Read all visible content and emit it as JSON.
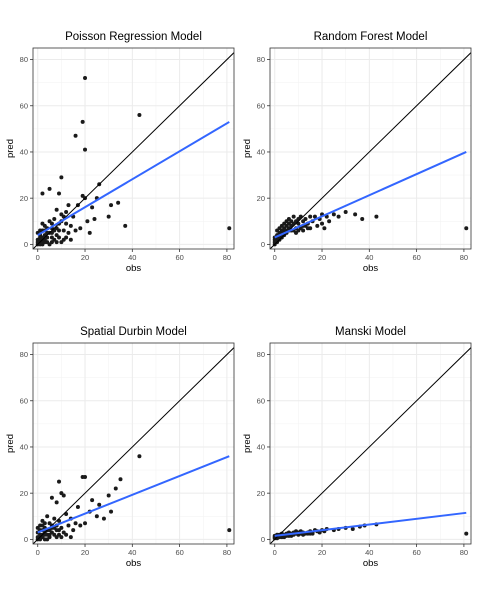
{
  "chart_data": [
    {
      "type": "scatter",
      "title": "Poisson Regression Model",
      "xlabel": "obs",
      "ylabel": "pred",
      "xlim": [
        -2,
        83
      ],
      "ylim": [
        -2,
        85
      ],
      "xticks": [
        0,
        20,
        40,
        60,
        80
      ],
      "yticks": [
        0,
        20,
        40,
        60,
        80
      ],
      "grid": true,
      "reference_line": "y = x",
      "fit_line": {
        "x": [
          0,
          81
        ],
        "y": [
          4,
          53
        ]
      },
      "colors": {
        "points": "#1a1a1a",
        "reference": "#000000",
        "fit": "#3366ff",
        "grid": "#ebebeb",
        "frame": "#333333"
      },
      "points": [
        [
          20,
          72
        ],
        [
          43,
          56
        ],
        [
          19,
          53
        ],
        [
          16,
          47
        ],
        [
          20,
          41
        ],
        [
          10,
          29
        ],
        [
          5,
          24
        ],
        [
          2,
          22
        ],
        [
          9,
          22
        ],
        [
          19,
          21
        ],
        [
          20,
          20
        ],
        [
          25,
          20
        ],
        [
          26,
          26
        ],
        [
          13,
          17
        ],
        [
          17,
          17
        ],
        [
          23,
          16
        ],
        [
          31,
          17
        ],
        [
          34,
          18
        ],
        [
          8,
          15
        ],
        [
          12,
          14
        ],
        [
          15,
          12
        ],
        [
          21,
          10
        ],
        [
          24,
          11
        ],
        [
          30,
          12
        ],
        [
          18,
          7
        ],
        [
          22,
          5
        ],
        [
          37,
          8
        ],
        [
          81,
          7
        ],
        [
          11,
          6
        ],
        [
          14,
          8
        ],
        [
          7,
          11
        ],
        [
          9,
          9
        ],
        [
          10,
          13
        ],
        [
          6,
          7
        ],
        [
          12,
          9
        ],
        [
          13,
          5
        ],
        [
          16,
          6
        ],
        [
          6,
          3
        ],
        [
          8,
          4
        ],
        [
          11,
          2
        ],
        [
          4,
          5
        ],
        [
          3,
          8
        ],
        [
          5,
          10
        ],
        [
          2,
          6
        ],
        [
          1,
          4
        ],
        [
          0,
          2
        ],
        [
          0,
          0
        ],
        [
          1,
          1
        ],
        [
          2,
          0
        ],
        [
          3,
          2
        ],
        [
          4,
          1
        ],
        [
          5,
          0
        ],
        [
          6,
          1
        ],
        [
          7,
          2
        ],
        [
          8,
          1
        ],
        [
          9,
          3
        ],
        [
          10,
          1
        ],
        [
          12,
          3
        ],
        [
          14,
          2
        ],
        [
          1,
          3
        ],
        [
          2,
          2
        ],
        [
          3,
          4
        ],
        [
          4,
          3
        ],
        [
          5,
          5
        ],
        [
          6,
          5
        ],
        [
          7,
          6
        ],
        [
          8,
          7
        ],
        [
          9,
          6
        ],
        [
          0,
          5
        ],
        [
          1,
          6
        ],
        [
          2,
          9
        ],
        [
          3,
          6
        ],
        [
          4,
          7
        ],
        [
          10,
          10
        ],
        [
          11,
          12
        ],
        [
          6,
          9
        ],
        [
          0,
          1
        ],
        [
          1,
          0
        ],
        [
          2,
          1
        ],
        [
          3,
          1
        ],
        [
          1,
          2
        ],
        [
          2,
          3
        ]
      ]
    },
    {
      "type": "scatter",
      "title": "Random Forest Model",
      "xlabel": "obs",
      "ylabel": "pred",
      "xlim": [
        -2,
        83
      ],
      "ylim": [
        -2,
        85
      ],
      "xticks": [
        0,
        20,
        40,
        60,
        80
      ],
      "yticks": [
        0,
        20,
        40,
        60,
        80
      ],
      "grid": true,
      "reference_line": "y = x",
      "fit_line": {
        "x": [
          0,
          81
        ],
        "y": [
          3,
          40
        ]
      },
      "colors": {
        "points": "#1a1a1a",
        "reference": "#000000",
        "fit": "#3366ff",
        "grid": "#ebebeb",
        "frame": "#333333"
      },
      "points": [
        [
          81,
          7
        ],
        [
          43,
          12
        ],
        [
          37,
          11
        ],
        [
          34,
          13
        ],
        [
          30,
          14
        ],
        [
          27,
          12
        ],
        [
          25,
          13
        ],
        [
          23,
          10
        ],
        [
          22,
          12
        ],
        [
          21,
          7
        ],
        [
          20,
          9
        ],
        [
          20,
          13
        ],
        [
          19,
          11
        ],
        [
          18,
          8
        ],
        [
          17,
          12
        ],
        [
          16,
          10
        ],
        [
          15,
          7
        ],
        [
          15,
          12
        ],
        [
          14,
          9
        ],
        [
          13,
          11
        ],
        [
          12,
          8
        ],
        [
          12,
          10
        ],
        [
          11,
          12
        ],
        [
          10,
          9
        ],
        [
          10,
          11
        ],
        [
          9,
          10
        ],
        [
          9,
          7
        ],
        [
          8,
          9
        ],
        [
          8,
          12
        ],
        [
          7,
          8
        ],
        [
          7,
          10
        ],
        [
          6,
          9
        ],
        [
          6,
          11
        ],
        [
          5,
          8
        ],
        [
          5,
          10
        ],
        [
          4,
          7
        ],
        [
          4,
          9
        ],
        [
          3,
          6
        ],
        [
          3,
          8
        ],
        [
          2,
          5
        ],
        [
          2,
          7
        ],
        [
          1,
          4
        ],
        [
          1,
          6
        ],
        [
          0,
          2
        ],
        [
          0,
          3
        ],
        [
          0,
          0
        ],
        [
          1,
          1
        ],
        [
          1,
          2
        ],
        [
          2,
          2
        ],
        [
          2,
          3
        ],
        [
          3,
          3
        ],
        [
          3,
          4
        ],
        [
          4,
          4
        ],
        [
          4,
          5
        ],
        [
          5,
          5
        ],
        [
          5,
          6
        ],
        [
          6,
          6
        ],
        [
          6,
          7
        ],
        [
          7,
          6
        ],
        [
          8,
          6
        ],
        [
          9,
          5
        ],
        [
          10,
          6
        ],
        [
          11,
          7
        ],
        [
          12,
          6
        ],
        [
          13,
          8
        ],
        [
          14,
          7
        ],
        [
          0,
          1
        ],
        [
          1,
          3
        ],
        [
          2,
          4
        ],
        [
          3,
          5
        ],
        [
          4,
          6
        ]
      ]
    },
    {
      "type": "scatter",
      "title": "Spatial Durbin Model",
      "xlabel": "obs",
      "ylabel": "pred",
      "xlim": [
        -2,
        83
      ],
      "ylim": [
        -2,
        85
      ],
      "xticks": [
        0,
        20,
        40,
        60,
        80
      ],
      "yticks": [
        0,
        20,
        40,
        60,
        80
      ],
      "grid": true,
      "reference_line": "y = x",
      "fit_line": {
        "x": [
          0,
          81
        ],
        "y": [
          3,
          36
        ]
      },
      "colors": {
        "points": "#1a1a1a",
        "reference": "#000000",
        "fit": "#3366ff",
        "grid": "#ebebeb",
        "frame": "#333333"
      },
      "points": [
        [
          43,
          36
        ],
        [
          20,
          27
        ],
        [
          19,
          27
        ],
        [
          35,
          26
        ],
        [
          33,
          22
        ],
        [
          9,
          25
        ],
        [
          10,
          20
        ],
        [
          11,
          19
        ],
        [
          6,
          18
        ],
        [
          8,
          16
        ],
        [
          23,
          17
        ],
        [
          26,
          15
        ],
        [
          30,
          19
        ],
        [
          31,
          12
        ],
        [
          17,
          14
        ],
        [
          22,
          12
        ],
        [
          25,
          10
        ],
        [
          28,
          9
        ],
        [
          20,
          7
        ],
        [
          81,
          4
        ],
        [
          12,
          11
        ],
        [
          14,
          9
        ],
        [
          16,
          7
        ],
        [
          18,
          6
        ],
        [
          15,
          4
        ],
        [
          13,
          6
        ],
        [
          11,
          3
        ],
        [
          9,
          8
        ],
        [
          10,
          5
        ],
        [
          7,
          9
        ],
        [
          8,
          4
        ],
        [
          6,
          6
        ],
        [
          5,
          7
        ],
        [
          4,
          10
        ],
        [
          3,
          5
        ],
        [
          2,
          8
        ],
        [
          1,
          6
        ],
        [
          0,
          3
        ],
        [
          0,
          1
        ],
        [
          1,
          2
        ],
        [
          2,
          1
        ],
        [
          3,
          0
        ],
        [
          4,
          2
        ],
        [
          5,
          1
        ],
        [
          6,
          3
        ],
        [
          7,
          2
        ],
        [
          8,
          1
        ],
        [
          9,
          2
        ],
        [
          10,
          1
        ],
        [
          12,
          2
        ],
        [
          14,
          1
        ],
        [
          0,
          5
        ],
        [
          1,
          4
        ],
        [
          2,
          4
        ],
        [
          3,
          3
        ],
        [
          4,
          4
        ],
        [
          5,
          4
        ],
        [
          6,
          5
        ],
        [
          7,
          5
        ],
        [
          8,
          6
        ],
        [
          9,
          4
        ],
        [
          2,
          6
        ],
        [
          3,
          7
        ],
        [
          0,
          0
        ],
        [
          1,
          0
        ],
        [
          1,
          1
        ],
        [
          2,
          2
        ],
        [
          3,
          2
        ],
        [
          4,
          0
        ],
        [
          5,
          2
        ]
      ]
    },
    {
      "type": "scatter",
      "title": "Manski Model",
      "xlabel": "obs",
      "ylabel": "pred",
      "xlim": [
        -2,
        83
      ],
      "ylim": [
        -2,
        85
      ],
      "xticks": [
        0,
        20,
        40,
        60,
        80
      ],
      "yticks": [
        0,
        20,
        40,
        60,
        80
      ],
      "grid": true,
      "reference_line": "y = x",
      "fit_line": {
        "x": [
          0,
          81
        ],
        "y": [
          1.5,
          11.5
        ]
      },
      "colors": {
        "points": "#1a1a1a",
        "reference": "#000000",
        "fit": "#3366ff",
        "grid": "#ebebeb",
        "frame": "#333333"
      },
      "points": [
        [
          81,
          2.5
        ],
        [
          43,
          6.5
        ],
        [
          38,
          6
        ],
        [
          36,
          5.5
        ],
        [
          33,
          4.5
        ],
        [
          30,
          5
        ],
        [
          27,
          4.5
        ],
        [
          25,
          4
        ],
        [
          22,
          4.5
        ],
        [
          21,
          3.5
        ],
        [
          20,
          4
        ],
        [
          19,
          3
        ],
        [
          18,
          3.5
        ],
        [
          17,
          4
        ],
        [
          16,
          3
        ],
        [
          15,
          3.5
        ],
        [
          14,
          3
        ],
        [
          13,
          2.5
        ],
        [
          12,
          3
        ],
        [
          11,
          3.5
        ],
        [
          10,
          3
        ],
        [
          10,
          2
        ],
        [
          9,
          2.5
        ],
        [
          9,
          3.5
        ],
        [
          8,
          2
        ],
        [
          8,
          3
        ],
        [
          7,
          2.5
        ],
        [
          7,
          1.5
        ],
        [
          6,
          2
        ],
        [
          6,
          3
        ],
        [
          5,
          2.5
        ],
        [
          5,
          1.5
        ],
        [
          4,
          2
        ],
        [
          4,
          1
        ],
        [
          3,
          1.5
        ],
        [
          3,
          2.5
        ],
        [
          2,
          1
        ],
        [
          2,
          2
        ],
        [
          1,
          1.5
        ],
        [
          1,
          0.5
        ],
        [
          0,
          1
        ],
        [
          0,
          0.5
        ],
        [
          0,
          1.5
        ],
        [
          1,
          2
        ],
        [
          2,
          1.5
        ],
        [
          3,
          1
        ],
        [
          4,
          1.5
        ],
        [
          5,
          2
        ],
        [
          6,
          1.5
        ],
        [
          11,
          2.5
        ],
        [
          12,
          2
        ],
        [
          14,
          2.5
        ],
        [
          15,
          2.5
        ],
        [
          16,
          2.5
        ]
      ]
    }
  ]
}
